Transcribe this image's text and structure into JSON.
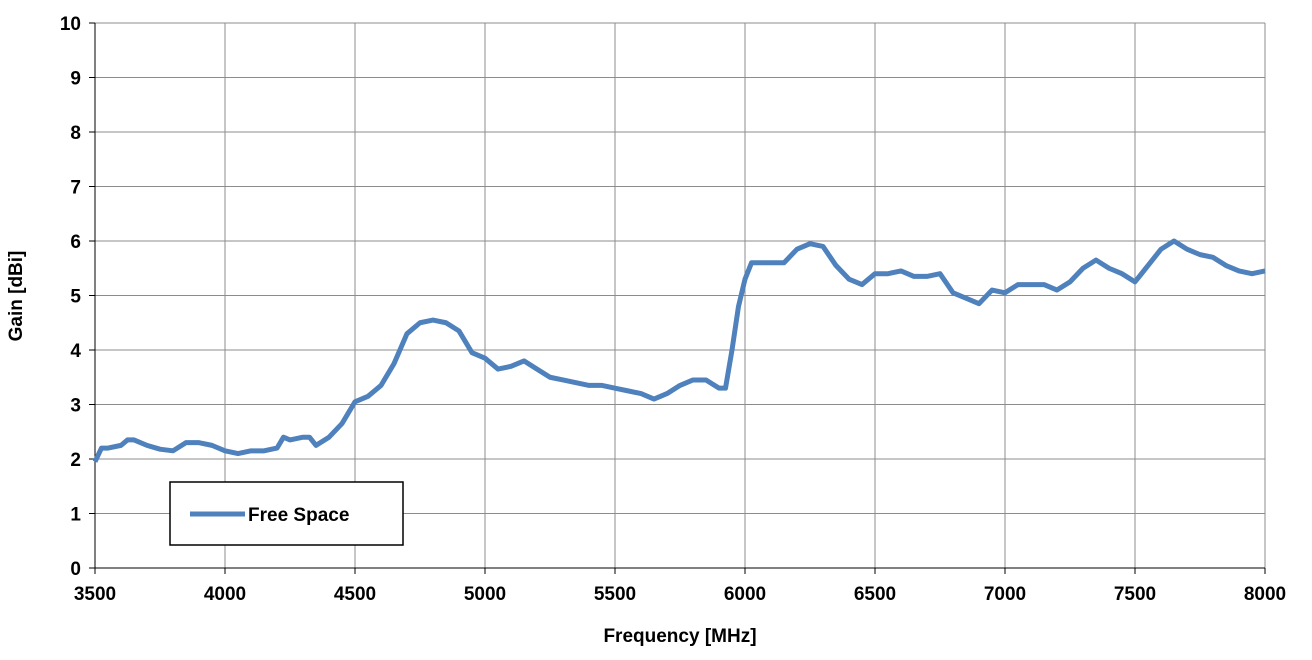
{
  "chart_data": {
    "type": "line",
    "x_label": "Frequency [MHz]",
    "y_label": "Gain [dBi]",
    "xlim": [
      3500,
      8000
    ],
    "xticks": [
      3500,
      4000,
      4500,
      5000,
      5500,
      6000,
      6500,
      7000,
      7500,
      8000
    ],
    "ylim": [
      0,
      10
    ],
    "yticks": [
      0,
      1,
      2,
      3,
      4,
      5,
      6,
      7,
      8,
      9,
      10
    ],
    "grid": true,
    "legend": "lower left",
    "x": [
      3500,
      3525,
      3550,
      3600,
      3625,
      3650,
      3700,
      3750,
      3800,
      3850,
      3900,
      3950,
      4000,
      4050,
      4100,
      4150,
      4200,
      4225,
      4250,
      4300,
      4325,
      4350,
      4400,
      4450,
      4500,
      4550,
      4600,
      4650,
      4700,
      4750,
      4800,
      4850,
      4900,
      4950,
      5000,
      5050,
      5100,
      5150,
      5200,
      5250,
      5300,
      5350,
      5400,
      5450,
      5500,
      5550,
      5600,
      5650,
      5700,
      5750,
      5800,
      5850,
      5900,
      5925,
      5950,
      5975,
      6000,
      6025,
      6050,
      6100,
      6150,
      6200,
      6250,
      6300,
      6350,
      6400,
      6450,
      6500,
      6550,
      6600,
      6650,
      6700,
      6750,
      6800,
      6850,
      6900,
      6950,
      7000,
      7050,
      7100,
      7150,
      7200,
      7250,
      7300,
      7350,
      7400,
      7450,
      7500,
      7550,
      7600,
      7650,
      7700,
      7750,
      7800,
      7850,
      7900,
      7950,
      8000
    ],
    "series": [
      {
        "name": "Free Space",
        "color": "#4f81bd",
        "values": [
          1.95,
          2.2,
          2.2,
          2.25,
          2.35,
          2.35,
          2.25,
          2.18,
          2.15,
          2.3,
          2.3,
          2.25,
          2.15,
          2.1,
          2.15,
          2.15,
          2.2,
          2.4,
          2.35,
          2.4,
          2.4,
          2.25,
          2.4,
          2.65,
          3.05,
          3.15,
          3.35,
          3.75,
          4.3,
          4.5,
          4.55,
          4.5,
          4.35,
          3.95,
          3.85,
          3.65,
          3.7,
          3.8,
          3.65,
          3.5,
          3.45,
          3.4,
          3.35,
          3.35,
          3.3,
          3.25,
          3.2,
          3.1,
          3.2,
          3.35,
          3.45,
          3.45,
          3.3,
          3.3,
          4.0,
          4.8,
          5.3,
          5.6,
          5.6,
          5.6,
          5.6,
          5.85,
          5.95,
          5.9,
          5.55,
          5.3,
          5.2,
          5.4,
          5.4,
          5.45,
          5.35,
          5.35,
          5.4,
          5.05,
          4.95,
          4.85,
          5.1,
          5.05,
          5.2,
          5.2,
          5.2,
          5.1,
          5.25,
          5.5,
          5.65,
          5.5,
          5.4,
          5.25,
          5.55,
          5.85,
          6.0,
          5.85,
          5.75,
          5.7,
          5.55,
          5.45,
          5.4,
          5.45
        ]
      }
    ]
  }
}
